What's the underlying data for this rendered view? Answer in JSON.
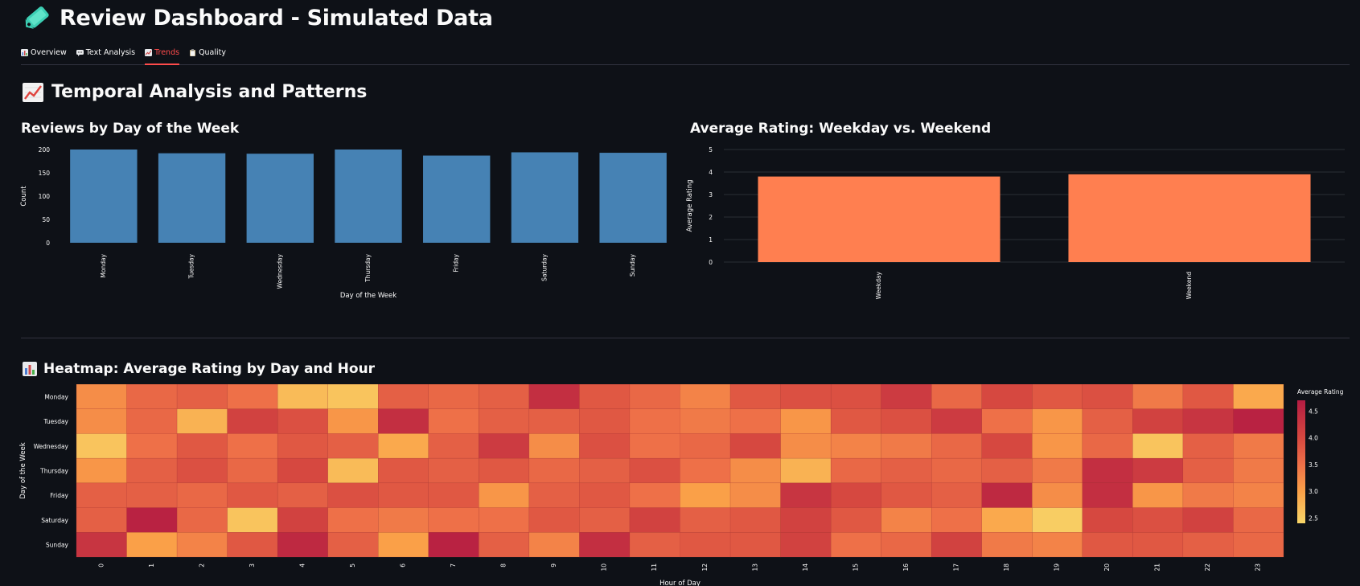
{
  "app": {
    "title": "Review Dashboard - Simulated Data",
    "title_icon": "tag-icon"
  },
  "tabs": [
    {
      "label": "Overview",
      "icon": "bar-chart-icon",
      "active": false
    },
    {
      "label": "Text Analysis",
      "icon": "speech-bubble-icon",
      "active": false
    },
    {
      "label": "Trends",
      "icon": "trend-chart-icon",
      "active": true
    },
    {
      "label": "Quality",
      "icon": "clipboard-icon",
      "active": false
    }
  ],
  "section": {
    "title": "Temporal Analysis and Patterns",
    "icon": "trend-chart-icon"
  },
  "heatmap_section": {
    "title": "Heatmap: Average Rating by Day and Hour",
    "icon": "bar-chart-icon"
  },
  "colors": {
    "background": "#0e1117",
    "accent": "#ff4b4b",
    "bar_blue": "#4682b4",
    "bar_orange": "#ff7f50"
  },
  "chart_data": [
    {
      "type": "bar",
      "title": "Reviews by Day of the Week",
      "xlabel": "Day of the Week",
      "ylabel": "Count",
      "categories": [
        "Monday",
        "Tuesday",
        "Wednesday",
        "Thursday",
        "Friday",
        "Saturday",
        "Sunday"
      ],
      "values": [
        200,
        192,
        191,
        200,
        187,
        194,
        193
      ],
      "ylim": [
        0,
        200
      ],
      "yticks": [
        0,
        50,
        100,
        150,
        200
      ],
      "grid": false
    },
    {
      "type": "bar",
      "title": "Average Rating: Weekday vs. Weekend",
      "xlabel": "",
      "ylabel": "Average Rating",
      "categories": [
        "Weekday",
        "Weekend"
      ],
      "values": [
        3.8,
        3.9
      ],
      "ylim": [
        0,
        5
      ],
      "yticks": [
        0,
        1,
        2,
        3,
        4,
        5
      ],
      "grid": true
    },
    {
      "type": "heatmap",
      "title": "",
      "xlabel": "Hour of Day",
      "ylabel": "Day of the Week",
      "colorbar_label": "Average Rating",
      "colorbar_ticks": [
        2.5,
        3.0,
        3.5,
        4.0,
        4.5
      ],
      "vmin": 2.4,
      "vmax": 4.7,
      "rows": [
        "Monday",
        "Tuesday",
        "Wednesday",
        "Thursday",
        "Friday",
        "Saturday",
        "Sunday"
      ],
      "cols": [
        "0",
        "1",
        "2",
        "3",
        "4",
        "5",
        "6",
        "7",
        "8",
        "9",
        "10",
        "11",
        "12",
        "13",
        "14",
        "15",
        "16",
        "17",
        "18",
        "19",
        "20",
        "21",
        "22",
        "23"
      ],
      "values": [
        [
          3.2,
          3.6,
          3.7,
          3.5,
          2.7,
          2.6,
          3.7,
          3.6,
          3.7,
          4.4,
          3.8,
          3.6,
          3.3,
          3.8,
          3.9,
          3.9,
          4.2,
          3.6,
          4.0,
          3.8,
          3.9,
          3.4,
          3.8,
          2.9
        ],
        [
          3.2,
          3.6,
          2.8,
          4.1,
          3.9,
          3.1,
          4.4,
          3.5,
          3.7,
          3.7,
          3.8,
          3.5,
          3.4,
          3.5,
          3.1,
          3.8,
          3.9,
          4.2,
          3.5,
          3.1,
          3.7,
          4.1,
          4.3,
          4.6
        ],
        [
          2.6,
          3.5,
          3.8,
          3.5,
          3.8,
          3.7,
          2.9,
          3.7,
          4.2,
          3.2,
          3.9,
          3.5,
          3.6,
          4.0,
          3.2,
          3.3,
          3.4,
          3.6,
          4.0,
          3.1,
          3.6,
          2.6,
          3.7,
          3.4
        ],
        [
          3.1,
          3.7,
          3.9,
          3.6,
          4.0,
          2.7,
          3.8,
          3.7,
          3.8,
          3.6,
          3.7,
          3.9,
          3.5,
          3.2,
          2.8,
          3.6,
          3.7,
          3.6,
          3.7,
          3.4,
          4.4,
          4.2,
          3.7,
          3.4
        ],
        [
          3.7,
          3.7,
          3.6,
          3.8,
          3.7,
          3.9,
          3.8,
          3.8,
          3.1,
          3.7,
          3.8,
          3.5,
          3.0,
          3.2,
          4.3,
          4.0,
          3.8,
          3.7,
          4.5,
          3.2,
          4.4,
          3.1,
          3.4,
          3.3
        ],
        [
          3.7,
          4.6,
          3.6,
          2.6,
          4.1,
          3.5,
          3.4,
          3.5,
          3.5,
          3.8,
          3.7,
          4.1,
          3.7,
          3.8,
          4.1,
          3.8,
          3.3,
          3.5,
          2.9,
          2.5,
          4.0,
          3.9,
          4.1,
          3.6
        ],
        [
          4.3,
          3.0,
          3.3,
          3.8,
          4.5,
          3.7,
          3.0,
          4.6,
          3.7,
          3.3,
          4.4,
          3.7,
          3.8,
          3.8,
          4.1,
          3.5,
          3.6,
          4.1,
          3.4,
          3.3,
          3.8,
          3.8,
          3.7,
          3.6
        ]
      ]
    }
  ]
}
